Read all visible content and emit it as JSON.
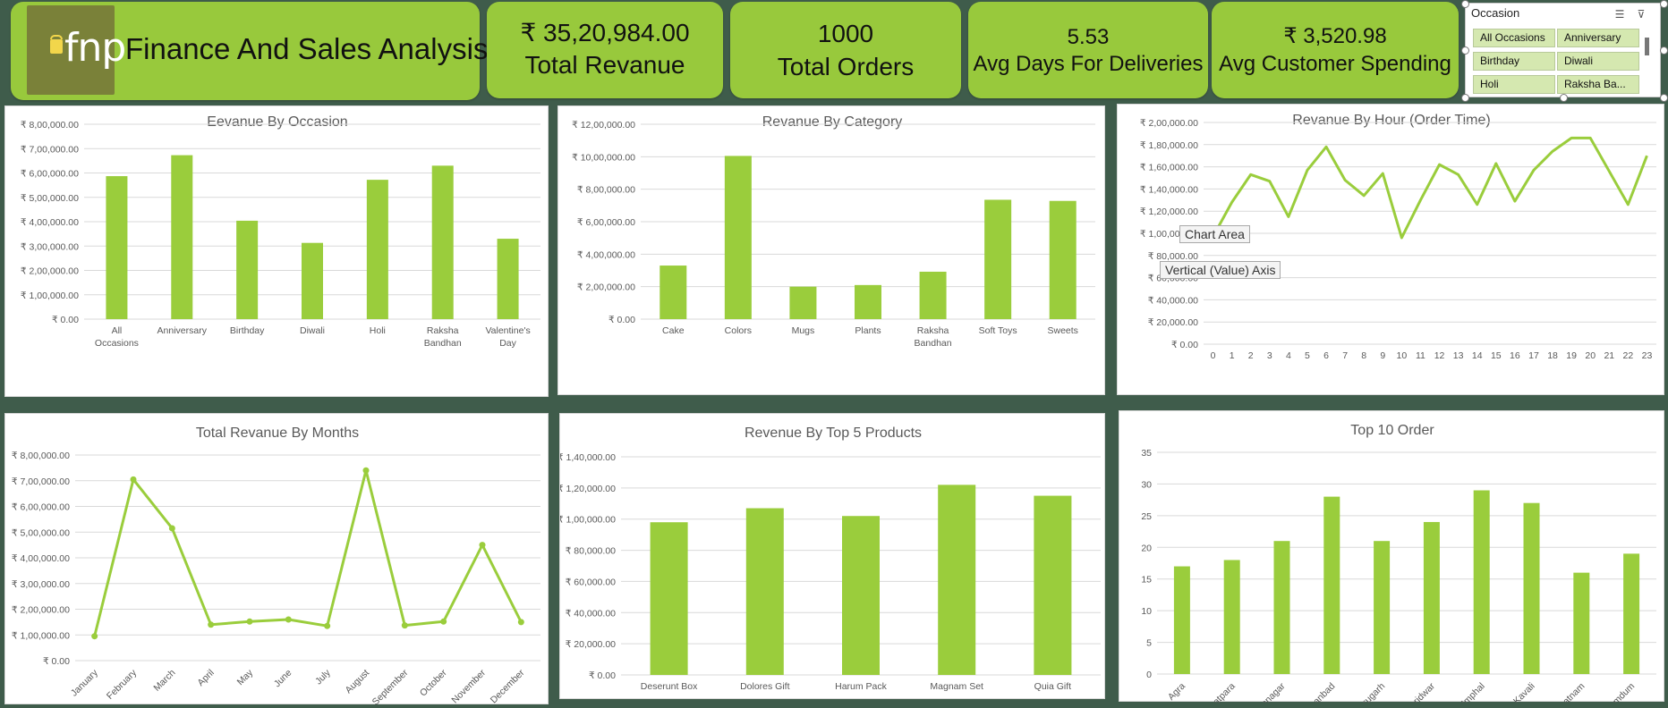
{
  "header": {
    "brand_logo_text": "fnp",
    "title": "Finance And Sales Analysis",
    "kpis": [
      {
        "value": "₹ 35,20,984.00",
        "label": "Total Revanue"
      },
      {
        "value": "1000",
        "label": "Total Orders"
      },
      {
        "value": "5.53",
        "label": "Avg Days For Deliveries"
      },
      {
        "value": "₹ 3,520.98",
        "label": "Avg Customer Spending"
      }
    ]
  },
  "slicer": {
    "title": "Occasion",
    "items": [
      "All Occasions",
      "Anniversary",
      "Birthday",
      "Diwali",
      "Holi",
      "Raksha Ba..."
    ],
    "multiselect_icon": "multiselect-icon",
    "clear_filter_icon": "clear-filter-icon"
  },
  "tooltips": {
    "chart_area": "Chart Area",
    "value_axis": "Vertical (Value) Axis"
  },
  "colors": {
    "accent": "#98c93c",
    "background": "#3f5c4b",
    "bar": "#9acd3c"
  },
  "chart_data": [
    {
      "id": "occasion",
      "type": "bar",
      "title": "Eevanue By Occasion",
      "categories": [
        "All Occasions",
        "Anniversary",
        "Birthday",
        "Diwali",
        "Holi",
        "Raksha Bandhan",
        "Valentine's Day"
      ],
      "values": [
        587000,
        673000,
        404000,
        313000,
        572000,
        630000,
        330000
      ],
      "ylim": [
        0,
        800000
      ],
      "yticks": [
        "₹ 0.00",
        "₹ 1,00,000.00",
        "₹ 2,00,000.00",
        "₹ 3,00,000.00",
        "₹ 4,00,000.00",
        "₹ 5,00,000.00",
        "₹ 6,00,000.00",
        "₹ 7,00,000.00",
        "₹ 8,00,000.00"
      ],
      "grid": true
    },
    {
      "id": "category",
      "type": "bar",
      "title": "Revanue By Category",
      "categories": [
        "Cake",
        "Colors",
        "Mugs",
        "Plants",
        "Raksha Bandhan",
        "Soft Toys",
        "Sweets"
      ],
      "values": [
        330000,
        1005000,
        200000,
        210000,
        292000,
        735000,
        728000
      ],
      "ylim": [
        0,
        1200000
      ],
      "yticks": [
        "₹ 0.00",
        "₹ 2,00,000.00",
        "₹ 4,00,000.00",
        "₹ 6,00,000.00",
        "₹ 8,00,000.00",
        "₹ 10,00,000.00",
        "₹ 12,00,000.00"
      ],
      "grid": true
    },
    {
      "id": "hour",
      "type": "line",
      "title": "Revanue By Hour (Order Time)",
      "categories": [
        "0",
        "1",
        "2",
        "3",
        "4",
        "5",
        "6",
        "7",
        "8",
        "9",
        "10",
        "11",
        "12",
        "13",
        "14",
        "15",
        "16",
        "17",
        "18",
        "19",
        "20",
        "21",
        "22",
        "23"
      ],
      "values": [
        97000,
        128000,
        153000,
        147000,
        115000,
        157000,
        178000,
        148000,
        134000,
        154000,
        96000,
        130000,
        162000,
        153000,
        126000,
        163000,
        129000,
        157000,
        174000,
        186000,
        186000,
        156000,
        126000,
        170000
      ],
      "ylim": [
        0,
        200000
      ],
      "yticks": [
        "₹ 0.00",
        "₹ 20,000.00",
        "₹ 40,000.00",
        "₹ 60,000.00",
        "₹ 80,000.00",
        "₹ 1,00,000.00",
        "₹ 1,20,000.00",
        "₹ 1,40,000.00",
        "₹ 1,60,000.00",
        "₹ 1,80,000.00",
        "₹ 2,00,000.00"
      ],
      "grid": true
    },
    {
      "id": "months",
      "type": "line",
      "title": "Total Revanue By Months",
      "categories": [
        "January",
        "February",
        "March",
        "April",
        "May",
        "June",
        "July",
        "August",
        "September",
        "October",
        "November",
        "December"
      ],
      "values": [
        95000,
        705000,
        515000,
        140000,
        152000,
        160000,
        135000,
        740000,
        137000,
        152000,
        450000,
        150000
      ],
      "ylim": [
        0,
        800000
      ],
      "yticks": [
        "₹ 0.00",
        "₹ 1,00,000.00",
        "₹ 2,00,000.00",
        "₹ 3,00,000.00",
        "₹ 4,00,000.00",
        "₹ 5,00,000.00",
        "₹ 6,00,000.00",
        "₹ 7,00,000.00",
        "₹ 8,00,000.00"
      ],
      "grid": true,
      "markers": true
    },
    {
      "id": "products",
      "type": "bar",
      "title": "Revenue By Top 5 Products",
      "categories": [
        "Deserunt Box",
        "Dolores Gift",
        "Harum Pack",
        "Magnam Set",
        "Quia Gift"
      ],
      "values": [
        98000,
        107000,
        102000,
        122000,
        115000
      ],
      "ylim": [
        0,
        140000
      ],
      "yticks": [
        "₹ 0.00",
        "₹ 20,000.00",
        "₹ 40,000.00",
        "₹ 60,000.00",
        "₹ 80,000.00",
        "₹ 1,00,000.00",
        "₹ 1,20,000.00",
        "₹ 1,40,000.00"
      ],
      "grid": true
    },
    {
      "id": "top10",
      "type": "bar",
      "title": "Top 10 Order",
      "categories": [
        "Agra",
        "Bhatpara",
        "Bidhannagar",
        "Dhanbad",
        "Dibrugarh",
        "Haridwar",
        "Imphal",
        "Kavali",
        "Machilipatnam",
        "North Dumdum"
      ],
      "values": [
        17,
        18,
        21,
        28,
        21,
        24,
        29,
        27,
        16,
        19
      ],
      "ylim": [
        0,
        35
      ],
      "yticks": [
        "0",
        "5",
        "10",
        "15",
        "20",
        "25",
        "30",
        "35"
      ],
      "grid": true
    }
  ]
}
